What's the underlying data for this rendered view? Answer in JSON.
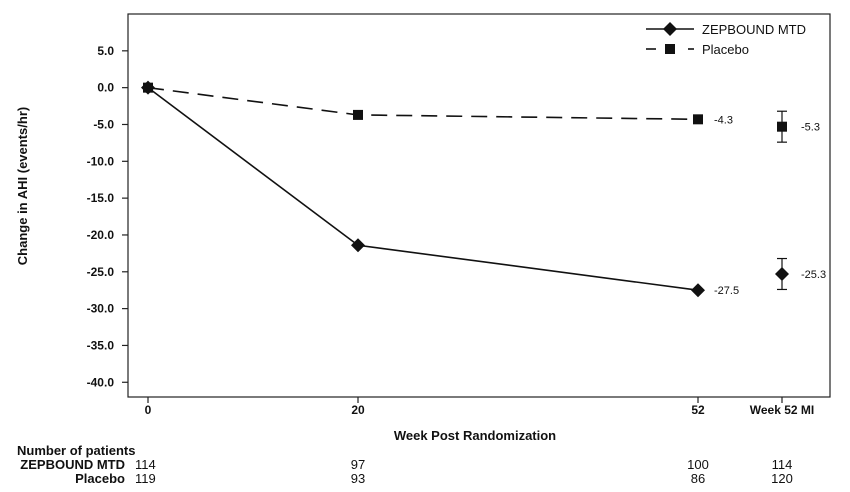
{
  "chart_data": {
    "type": "line",
    "xlabel": "Week Post Randomization",
    "ylabel": "Change in AHI (events/hr)",
    "x_ticks": [
      "0",
      "20",
      "52",
      "Week 52 MI"
    ],
    "ylim": [
      -42,
      10
    ],
    "y_ticks": [
      "5.0",
      "0.0",
      "-5.0",
      "-10.0",
      "-15.0",
      "-20.0",
      "-25.0",
      "-30.0",
      "-35.0",
      "-40.0"
    ],
    "legend_position": "top-right",
    "grid": false,
    "series": [
      {
        "name": "ZEPBOUND MTD",
        "marker": "diamond",
        "line": "solid",
        "x": [
          0,
          20,
          52
        ],
        "y": [
          0.0,
          -21.4,
          -27.5
        ],
        "end_label": "-27.5",
        "mi": {
          "value": -25.3,
          "error_low": -27.4,
          "error_high": -23.2,
          "label": "-25.3"
        }
      },
      {
        "name": "Placebo",
        "marker": "square",
        "line": "dashed",
        "x": [
          0,
          20,
          52
        ],
        "y": [
          0.0,
          -3.7,
          -4.3
        ],
        "end_label": "-4.3",
        "mi": {
          "value": -5.3,
          "error_low": -7.4,
          "error_high": -3.2,
          "label": "-5.3"
        }
      }
    ]
  },
  "patients": {
    "heading": "Number of patients",
    "rows": [
      {
        "label": "ZEPBOUND MTD",
        "values": [
          "114",
          "97",
          "100",
          "114"
        ]
      },
      {
        "label": "Placebo",
        "values": [
          "119",
          "93",
          "86",
          "120"
        ]
      }
    ]
  }
}
